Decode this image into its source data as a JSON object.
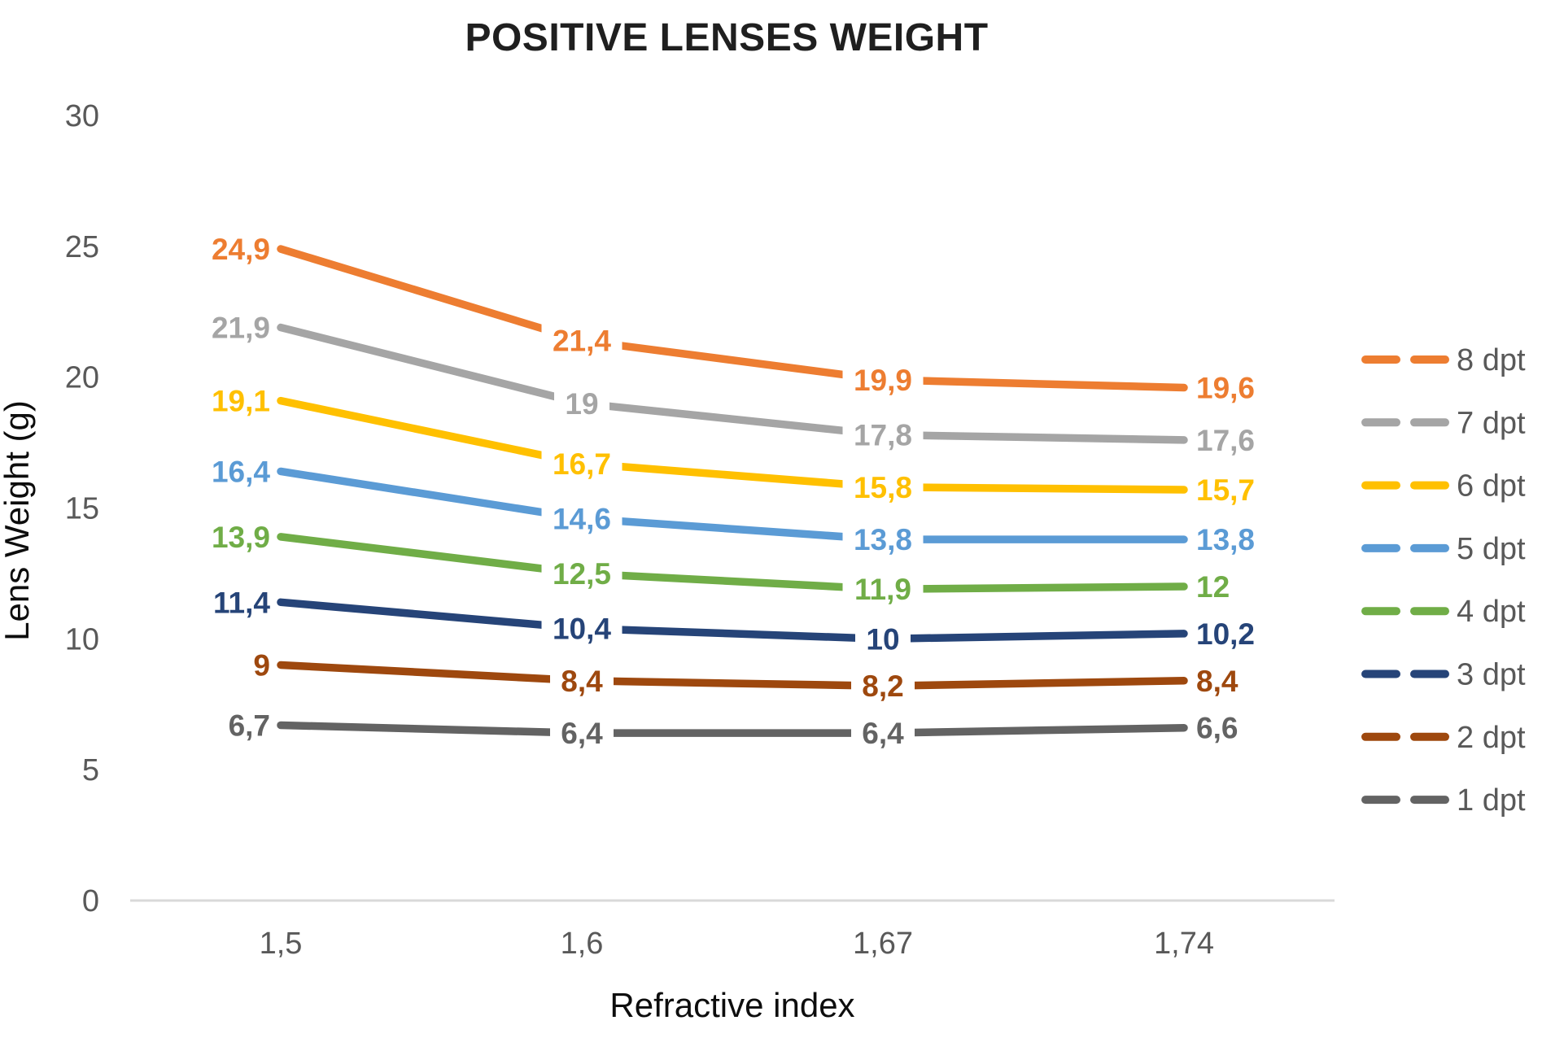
{
  "title": "POSITIVE LENSES WEIGHT",
  "chart_data": {
    "type": "line",
    "title": "POSITIVE LENSES WEIGHT",
    "xlabel": "Refractive index",
    "ylabel": "Lens Weight (g)",
    "categories": [
      "1,5",
      "1,6",
      "1,67",
      "1,74"
    ],
    "x_values": [
      1.5,
      1.6,
      1.67,
      1.74
    ],
    "ylim": [
      0,
      30
    ],
    "yticks": [
      0,
      5,
      10,
      15,
      20,
      25,
      30
    ],
    "ytick_labels": [
      "0",
      "5",
      "10",
      "15",
      "20",
      "25",
      "30"
    ],
    "grid": false,
    "legend_position": "right",
    "series": [
      {
        "name": "8 dpt",
        "color": "#ED7D31",
        "values": [
          24.9,
          21.4,
          19.9,
          19.6
        ],
        "labels": [
          "24,9",
          "21,4",
          "19,9",
          "19,6"
        ]
      },
      {
        "name": "7 dpt",
        "color": "#A5A5A5",
        "values": [
          21.9,
          19.0,
          17.8,
          17.6
        ],
        "labels": [
          "21,9",
          "19",
          "17,8",
          "17,6"
        ]
      },
      {
        "name": "6 dpt",
        "color": "#FFC000",
        "values": [
          19.1,
          16.7,
          15.8,
          15.7
        ],
        "labels": [
          "19,1",
          "16,7",
          "15,8",
          "15,7"
        ]
      },
      {
        "name": "5 dpt",
        "color": "#5B9BD5",
        "values": [
          16.4,
          14.6,
          13.8,
          13.8
        ],
        "labels": [
          "16,4",
          "14,6",
          "13,8",
          "13,8"
        ]
      },
      {
        "name": "4 dpt",
        "color": "#70AD47",
        "values": [
          13.9,
          12.5,
          11.9,
          12.0
        ],
        "labels": [
          "13,9",
          "12,5",
          "11,9",
          "12"
        ]
      },
      {
        "name": "3 dpt",
        "color": "#264478",
        "values": [
          11.4,
          10.4,
          10.0,
          10.2
        ],
        "labels": [
          "11,4",
          "10,4",
          "10",
          "10,2"
        ]
      },
      {
        "name": "2 dpt",
        "color": "#9E480E",
        "values": [
          9.0,
          8.4,
          8.2,
          8.4
        ],
        "labels": [
          "9",
          "8,4",
          "8,2",
          "8,4"
        ]
      },
      {
        "name": "1 dpt",
        "color": "#636363",
        "values": [
          6.7,
          6.4,
          6.4,
          6.6
        ],
        "labels": [
          "6,7",
          "6,4",
          "6,4",
          "6,6"
        ]
      }
    ]
  },
  "colors": {
    "background": "#FFFFFF",
    "baseline": "#D9D9D9",
    "tick_text": "#595959",
    "title_text": "#1F1F1F",
    "axis_title_text": "#0D0D0D",
    "legend_text": "#595959"
  }
}
